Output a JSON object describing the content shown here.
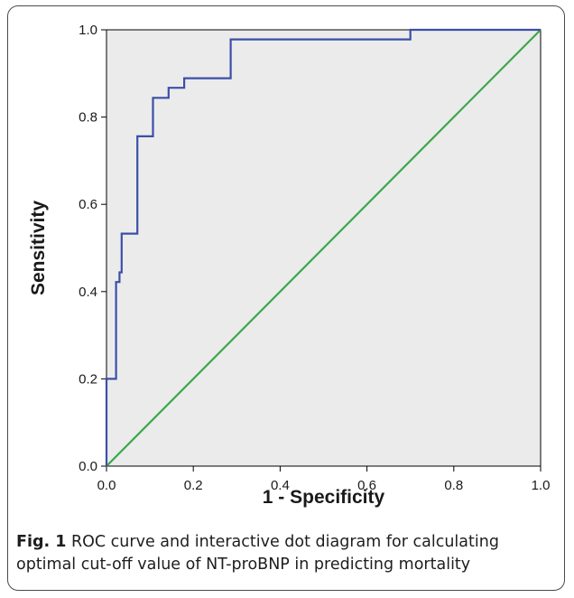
{
  "chart_data": {
    "type": "line",
    "xlabel": "1 - Specificity",
    "ylabel": "Sensitivity",
    "xlim": [
      0.0,
      1.0
    ],
    "ylim": [
      0.0,
      1.0
    ],
    "x_ticks": [
      "0.0",
      "0.2",
      "0.4",
      "0.6",
      "0.8",
      "1.0"
    ],
    "y_ticks": [
      "0.0",
      "0.2",
      "0.4",
      "0.6",
      "0.8",
      "1.0"
    ],
    "grid": false,
    "plot_background": "#ebebeb",
    "series": [
      {
        "color": "#3b4fa8",
        "points": [
          [
            0.0,
            0.0
          ],
          [
            0.0,
            0.2
          ],
          [
            0.022,
            0.2
          ],
          [
            0.022,
            0.422
          ],
          [
            0.03,
            0.422
          ],
          [
            0.03,
            0.444
          ],
          [
            0.035,
            0.444
          ],
          [
            0.035,
            0.533
          ],
          [
            0.071,
            0.533
          ],
          [
            0.071,
            0.756
          ],
          [
            0.107,
            0.756
          ],
          [
            0.107,
            0.844
          ],
          [
            0.143,
            0.844
          ],
          [
            0.143,
            0.867
          ],
          [
            0.179,
            0.867
          ],
          [
            0.179,
            0.889
          ],
          [
            0.286,
            0.889
          ],
          [
            0.286,
            0.978
          ],
          [
            0.7,
            0.978
          ],
          [
            0.7,
            1.0
          ],
          [
            1.0,
            1.0
          ]
        ]
      },
      {
        "color": "#3ba84a",
        "points": [
          [
            0.0,
            0.0
          ],
          [
            1.0,
            1.0
          ]
        ]
      }
    ]
  },
  "caption": {
    "label": "Fig. 1",
    "text": " ROC curve and interactive dot diagram for calculating optimal cut-off value of NT-proBNP in predicting mortality"
  }
}
